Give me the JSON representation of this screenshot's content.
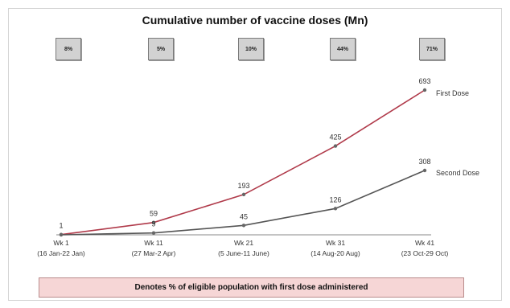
{
  "title": "Cumulative number of vaccine doses (Mn)",
  "badges": [
    "8%",
    "5%",
    "10%",
    "44%",
    "71%"
  ],
  "footnote": "Denotes % of eligible population with first dose administered",
  "colors": {
    "first_dose": "#b03a4a",
    "second_dose": "#555555",
    "badge_fill": "#d2d2d2",
    "footnote_fill": "#f6d6d6"
  },
  "chart_data": {
    "type": "line",
    "title": "Cumulative number of vaccine doses (Mn)",
    "categories": [
      [
        "Wk 1",
        "(16 Jan-22 Jan)"
      ],
      [
        "Wk 11",
        "(27 Mar-2 Apr)"
      ],
      [
        "Wk 21",
        "(5 June-11 June)"
      ],
      [
        "Wk 31",
        "(14 Aug-20 Aug)"
      ],
      [
        "Wk 41",
        "(23 Oct-29 Oct)"
      ]
    ],
    "series": [
      {
        "name": "First Dose",
        "values": [
          1,
          59,
          193,
          425,
          693
        ],
        "labels": [
          "1",
          "59",
          "193",
          "425",
          "693"
        ]
      },
      {
        "name": "Second Dose",
        "values": [
          0,
          9,
          45,
          126,
          308
        ],
        "labels": [
          "",
          "9",
          "45",
          "126",
          "308"
        ]
      }
    ],
    "ylim": [
      0,
      693
    ],
    "grid": false,
    "legend": "end-of-line labels"
  }
}
